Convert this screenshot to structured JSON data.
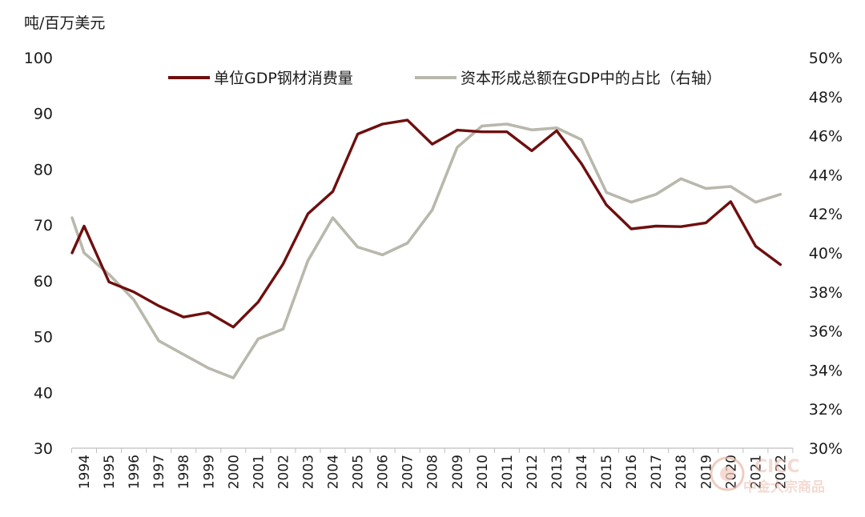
{
  "colors": {
    "series1": "#6e0f0f",
    "series2": "#b9b8ac",
    "axis": "#bfbfbf",
    "text": "#1a1a1a",
    "watermark": "#e9b9a8"
  },
  "chart_data": {
    "type": "line",
    "title": "",
    "left_unit_label": "吨/百万美元",
    "xlabel": "",
    "ylabel": "吨/百万美元",
    "y_left": {
      "lim": [
        30,
        100
      ],
      "ticks": [
        30,
        40,
        50,
        60,
        70,
        80,
        90,
        100
      ],
      "tick_labels": [
        "30",
        "40",
        "50",
        "60",
        "70",
        "80",
        "90",
        "100"
      ]
    },
    "y_right": {
      "lim": [
        30,
        50
      ],
      "ticks": [
        30,
        32,
        34,
        36,
        38,
        40,
        42,
        44,
        46,
        48,
        50
      ],
      "tick_labels": [
        "30%",
        "32%",
        "34%",
        "36%",
        "38%",
        "40%",
        "42%",
        "44%",
        "46%",
        "48%",
        "50%"
      ]
    },
    "categories": [
      "1994",
      "1995",
      "1996",
      "1997",
      "1998",
      "1999",
      "2000",
      "2001",
      "2002",
      "2003",
      "2004",
      "2005",
      "2006",
      "2007",
      "2008",
      "2009",
      "2010",
      "2011",
      "2012",
      "2013",
      "2014",
      "2015",
      "2016",
      "2017",
      "2018",
      "2019",
      "2020",
      "2021",
      "2022"
    ],
    "series": [
      {
        "name": "单位GDP钢材消费量",
        "axis": "left",
        "color": "#6e0f0f",
        "start_value": 65.0,
        "values": [
          69.8,
          59.8,
          58.0,
          55.5,
          53.5,
          54.3,
          51.7,
          56.2,
          63.0,
          72.0,
          76.0,
          86.3,
          88.1,
          88.8,
          84.5,
          87.0,
          86.7,
          86.7,
          83.3,
          86.9,
          81.0,
          73.6,
          69.3,
          69.8,
          69.7,
          70.4,
          74.2,
          66.2,
          62.9
        ]
      },
      {
        "name": "资本形成总额在GDP中的占比（右轴）",
        "axis": "right",
        "color": "#b9b8ac",
        "start_value": 41.8,
        "values": [
          40.0,
          38.9,
          37.6,
          35.5,
          34.8,
          34.1,
          33.6,
          35.6,
          36.1,
          39.6,
          41.8,
          40.3,
          39.9,
          40.5,
          42.2,
          45.4,
          46.5,
          46.6,
          46.3,
          46.4,
          45.8,
          43.1,
          42.6,
          43.0,
          43.8,
          43.3,
          43.4,
          42.6,
          43.0
        ]
      }
    ],
    "legend": {
      "position": "top",
      "items": [
        "单位GDP钢材消费量",
        "资本形成总额在GDP中的占比（右轴）"
      ]
    },
    "grid": false
  },
  "watermark": {
    "logo_text": "CICC",
    "caption": "中金大宗商品"
  }
}
